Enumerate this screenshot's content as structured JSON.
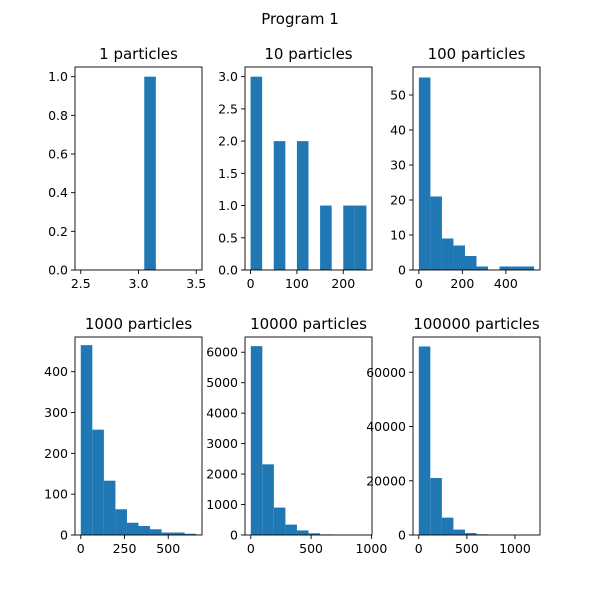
{
  "figure": {
    "suptitle": "Program 1"
  },
  "bar_color": "#1f77b4",
  "chart_data": [
    {
      "type": "bar",
      "title": "1 particles",
      "xlim": [
        2.45,
        3.55
      ],
      "ylim": [
        0,
        1.05
      ],
      "xticks": [
        2.5,
        3.0,
        3.5
      ],
      "xtick_labels": [
        "2.5",
        "3.0",
        "3.5"
      ],
      "yticks": [
        0,
        0.2,
        0.4,
        0.6,
        0.8,
        1.0
      ],
      "ytick_labels": [
        "0.0",
        "0.2",
        "0.4",
        "0.6",
        "0.8",
        "1.0"
      ],
      "bins": [
        [
          2.95,
          3.05,
          0
        ],
        [
          3.05,
          3.15,
          1
        ]
      ]
    },
    {
      "type": "bar",
      "title": "10 particles",
      "xlim": [
        -12,
        262
      ],
      "ylim": [
        0,
        3.15
      ],
      "xticks": [
        0,
        100,
        200
      ],
      "xtick_labels": [
        "0",
        "100",
        "200"
      ],
      "yticks": [
        0,
        0.5,
        1.0,
        1.5,
        2.0,
        2.5,
        3.0
      ],
      "ytick_labels": [
        "0.0",
        "0.5",
        "1.0",
        "1.5",
        "2.0",
        "2.5",
        "3.0"
      ],
      "bins": [
        [
          0,
          25,
          3
        ],
        [
          25,
          50,
          0
        ],
        [
          50,
          75,
          2
        ],
        [
          75,
          100,
          0
        ],
        [
          100,
          125,
          2
        ],
        [
          125,
          150,
          0
        ],
        [
          150,
          175,
          1
        ],
        [
          175,
          200,
          0
        ],
        [
          200,
          225,
          1
        ],
        [
          225,
          250,
          1
        ]
      ]
    },
    {
      "type": "bar",
      "title": "100 particles",
      "xlim": [
        -27,
        557
      ],
      "ylim": [
        0,
        58
      ],
      "xticks": [
        0,
        200,
        400
      ],
      "xtick_labels": [
        "0",
        "200",
        "400"
      ],
      "yticks": [
        0,
        10,
        20,
        30,
        40,
        50
      ],
      "ytick_labels": [
        "0",
        "10",
        "20",
        "30",
        "40",
        "50"
      ],
      "bins": [
        [
          0,
          53,
          55
        ],
        [
          53,
          106,
          21
        ],
        [
          106,
          159,
          9
        ],
        [
          159,
          212,
          7
        ],
        [
          212,
          265,
          4
        ],
        [
          265,
          318,
          1
        ],
        [
          318,
          371,
          0
        ],
        [
          371,
          424,
          1
        ],
        [
          424,
          477,
          1
        ],
        [
          477,
          530,
          1
        ]
      ]
    },
    {
      "type": "bar",
      "title": "1000 particles",
      "xlim": [
        -33,
        693
      ],
      "ylim": [
        0,
        485
      ],
      "xticks": [
        0,
        250,
        500
      ],
      "xtick_labels": [
        "0",
        "250",
        "500"
      ],
      "yticks": [
        0,
        100,
        200,
        300,
        400
      ],
      "ytick_labels": [
        "0",
        "100",
        "200",
        "300",
        "400"
      ],
      "bins": [
        [
          0,
          66,
          465
        ],
        [
          66,
          132,
          258
        ],
        [
          132,
          198,
          133
        ],
        [
          198,
          264,
          63
        ],
        [
          264,
          330,
          30
        ],
        [
          330,
          396,
          22
        ],
        [
          396,
          462,
          14
        ],
        [
          462,
          528,
          6
        ],
        [
          528,
          594,
          6
        ],
        [
          594,
          660,
          3
        ]
      ]
    },
    {
      "type": "bar",
      "title": "10000 particles",
      "xlim": [
        -48,
        1005
      ],
      "ylim": [
        0,
        6500
      ],
      "xticks": [
        0,
        500,
        1000
      ],
      "xtick_labels": [
        "0",
        "500",
        "1000"
      ],
      "yticks": [
        0,
        1000,
        2000,
        3000,
        4000,
        5000,
        6000
      ],
      "ytick_labels": [
        "0",
        "1000",
        "2000",
        "3000",
        "4000",
        "5000",
        "6000"
      ],
      "bins": [
        [
          0,
          95.7,
          6200
        ],
        [
          95.7,
          191.4,
          2320
        ],
        [
          191.4,
          287.1,
          900
        ],
        [
          287.1,
          382.8,
          340
        ],
        [
          382.8,
          478.5,
          150
        ],
        [
          478.5,
          574.2,
          55
        ],
        [
          574.2,
          669.9,
          20
        ],
        [
          669.9,
          765.6,
          8
        ],
        [
          765.6,
          861.3,
          3
        ],
        [
          861.3,
          957,
          2
        ]
      ]
    },
    {
      "type": "bar",
      "title": "100000 particles",
      "xlim": [
        -60,
        1260
      ],
      "ylim": [
        0,
        73000
      ],
      "xticks": [
        0,
        500,
        1000
      ],
      "xtick_labels": [
        "0",
        "500",
        "1000"
      ],
      "yticks": [
        0,
        20000,
        40000,
        60000
      ],
      "ytick_labels": [
        "0",
        "20000",
        "40000",
        "60000"
      ],
      "bins": [
        [
          0,
          120,
          69500
        ],
        [
          120,
          240,
          21000
        ],
        [
          240,
          360,
          6400
        ],
        [
          360,
          480,
          2000
        ],
        [
          480,
          600,
          700
        ],
        [
          600,
          720,
          250
        ],
        [
          720,
          840,
          80
        ],
        [
          840,
          960,
          30
        ],
        [
          960,
          1080,
          10
        ],
        [
          1080,
          1200,
          4
        ]
      ]
    }
  ]
}
